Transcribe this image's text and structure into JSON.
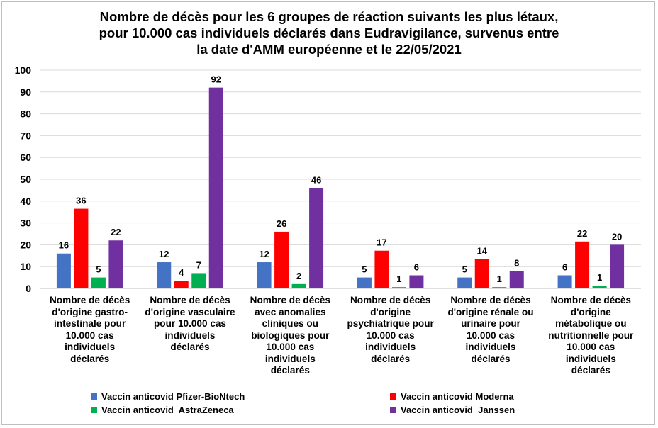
{
  "chart_data": {
    "type": "bar",
    "title": "Nombre de décès pour les 6 groupes de réaction suivants les plus létaux,\npour 10.000 cas individuels déclarés dans Eudravigilance, survenus entre\nla date d'AMM européenne et le 22/05/2021",
    "xlabel": "",
    "ylabel": "",
    "ylim": [
      0,
      100
    ],
    "yticks": [
      "0",
      "10",
      "20",
      "30",
      "40",
      "50",
      "60",
      "70",
      "80",
      "90",
      "100"
    ],
    "grid": true,
    "legend_position": "bottom",
    "categories": [
      "Nombre de décès\nd'origine gastro-\nintestinale pour\n10.000 cas\nindividuels\ndéclarés",
      "Nombre de décès\nd'origine vasculaire\npour 10.000 cas\nindividuels\ndéclarés",
      "Nombre de décès\navec anomalies\ncliniques ou\nbiologiques pour\n10.000 cas\nindividuels\ndéclarés",
      "Nombre de décès\nd'origine\npsychiatrique pour\n10.000 cas\nindividuels\ndéclarés",
      "Nombre de décès\nd'origine rénale ou\nurinaire pour\n10.000 cas\nindividuels\ndéclarés",
      "Nombre de décès\nd'origine\nmétabolique ou\nnutritionnelle pour\n10.000 cas\nindividuels\ndéclarés"
    ],
    "series": [
      {
        "name": "Vaccin anticovid Pfizer-BioNtech",
        "color": "#4472c4",
        "values": [
          16,
          12,
          12,
          5,
          5,
          6
        ],
        "labels": [
          "16",
          "12",
          "12",
          "5",
          "5",
          "6"
        ]
      },
      {
        "name": "Vaccin anticovid Moderna",
        "color": "#ff0000",
        "values": [
          36.5,
          3.5,
          26,
          17.3,
          13.5,
          21.5
        ],
        "labels": [
          "36",
          "4",
          "26",
          "17",
          "14",
          "22"
        ]
      },
      {
        "name": "Vaccin anticovid  AstraZeneca",
        "color": "#00b050",
        "values": [
          5,
          7,
          2,
          0.6,
          0.6,
          1.3
        ],
        "labels": [
          "5",
          "7",
          "2",
          "1",
          "1",
          "1"
        ]
      },
      {
        "name": "Vaccin anticovid  Janssen",
        "color": "#7030a0",
        "values": [
          22,
          92,
          46,
          6,
          8,
          20
        ],
        "labels": [
          "22",
          "92",
          "46",
          "6",
          "8",
          "20"
        ]
      }
    ]
  }
}
